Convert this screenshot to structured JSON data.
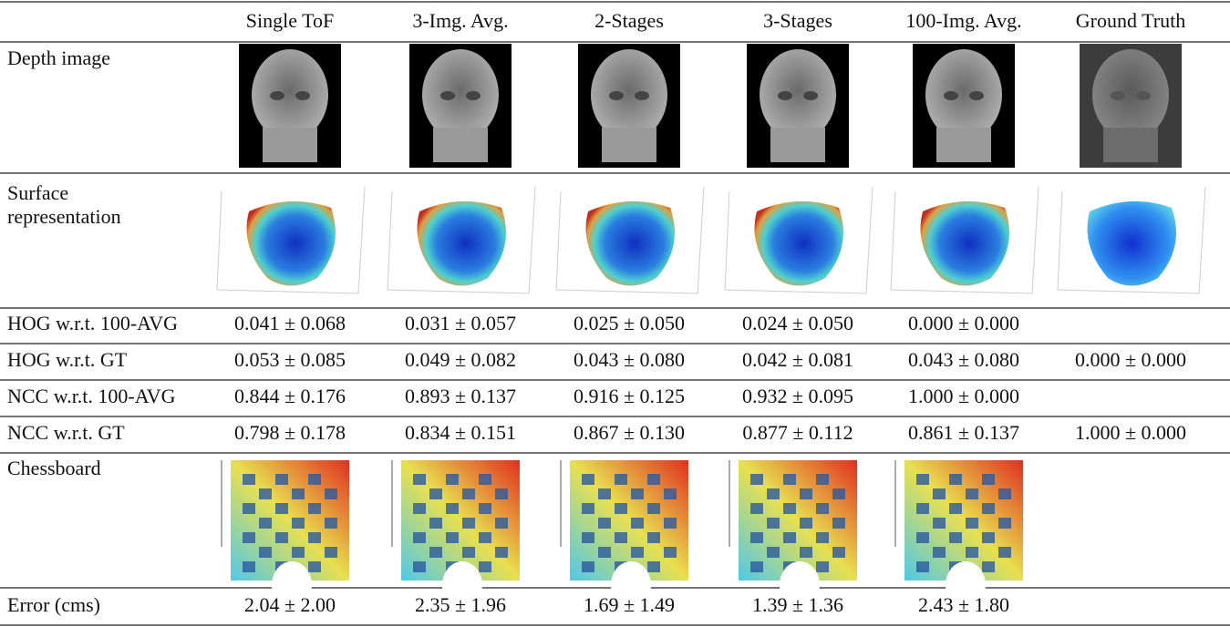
{
  "table": {
    "header": [
      "Single ToF",
      "3-Img. Avg.",
      "2-Stages",
      "3-Stages",
      "100-Img. Avg.",
      "Ground Truth"
    ],
    "depth_row": {
      "label": "Depth image"
    },
    "surface_row": {
      "label": [
        "Surface",
        "representation"
      ]
    },
    "metric_rows": [
      {
        "label": "HOG w.r.t. 100-AVG",
        "cells": [
          "0.041 ± 0.068",
          "0.031 ± 0.057",
          "0.025 ± 0.050",
          "0.024 ± 0.050",
          "0.000 ± 0.000",
          null
        ]
      },
      {
        "label": "HOG w.r.t. GT",
        "cells": [
          "0.053 ± 0.085",
          "0.049 ± 0.082",
          "0.043 ± 0.080",
          "0.042 ± 0.081",
          "0.043 ± 0.080",
          "0.000 ± 0.000"
        ]
      },
      {
        "label": "NCC w.r.t. 100-AVG",
        "cells": [
          "0.844 ± 0.176",
          "0.893 ± 0.137",
          "0.916 ± 0.125",
          "0.932 ± 0.095",
          "1.000 ± 0.000",
          null
        ]
      },
      {
        "label": "NCC w.r.t. GT",
        "cells": [
          "0.798 ± 0.178",
          "0.834 ± 0.151",
          "0.867 ± 0.130",
          "0.877 ± 0.112",
          "0.861 ± 0.137",
          "1.000 ± 0.000"
        ]
      }
    ],
    "chessboard_row": {
      "label": "Chessboard"
    },
    "error_row": {
      "label": "Error (cms)",
      "cells": [
        "2.04 ± 2.00",
        "2.35 ± 1.96",
        "1.69 ± 1.49",
        "1.39 ± 1.36",
        "2.43 ± 1.80",
        null
      ]
    }
  }
}
